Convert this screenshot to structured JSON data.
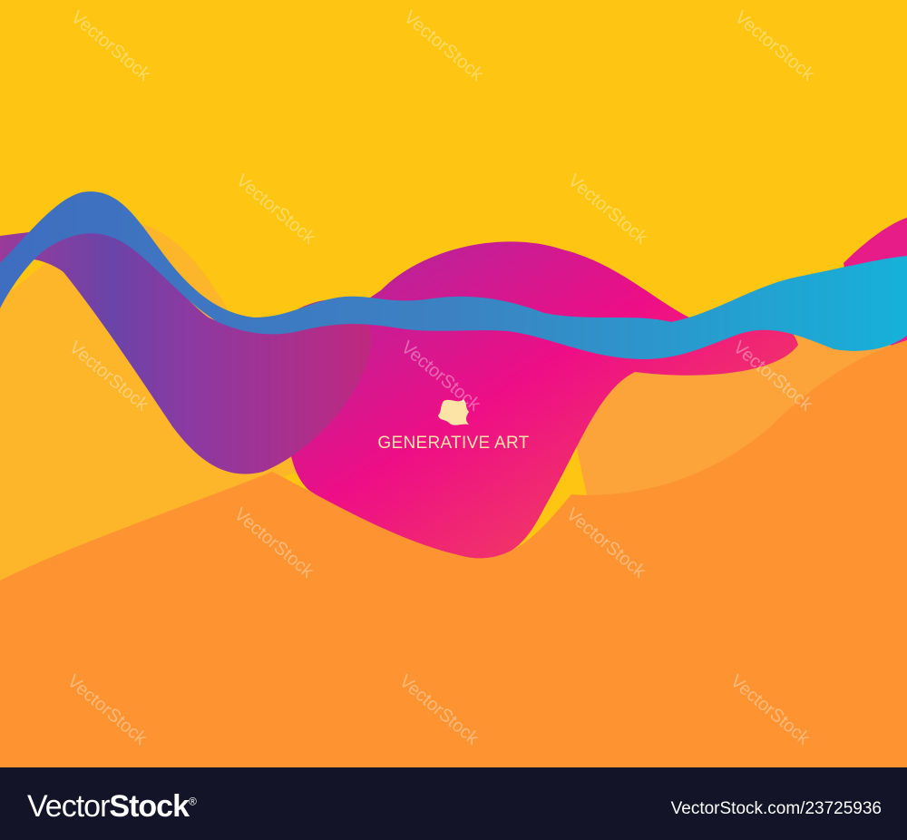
{
  "artwork": {
    "caption": "GENERATIVE ART",
    "logo_icon": "abstract-wave-emblem-icon",
    "colors": {
      "sky": "#FEC613",
      "ground": "#FD9431",
      "left_hill": "#FDB52A",
      "pink": "#EE0E86",
      "purple": "#7A3A9E",
      "blue": "#3E7DC0",
      "cyan": "#1FA9D6",
      "caption": "#FCE3A6"
    }
  },
  "watermark": {
    "text": "VectorStock"
  },
  "footer": {
    "brand_light": "Vector",
    "brand_bold": "Stock",
    "brand_mark": "®",
    "image_id": "VectorStock.com/23725936",
    "background": "#131427"
  }
}
